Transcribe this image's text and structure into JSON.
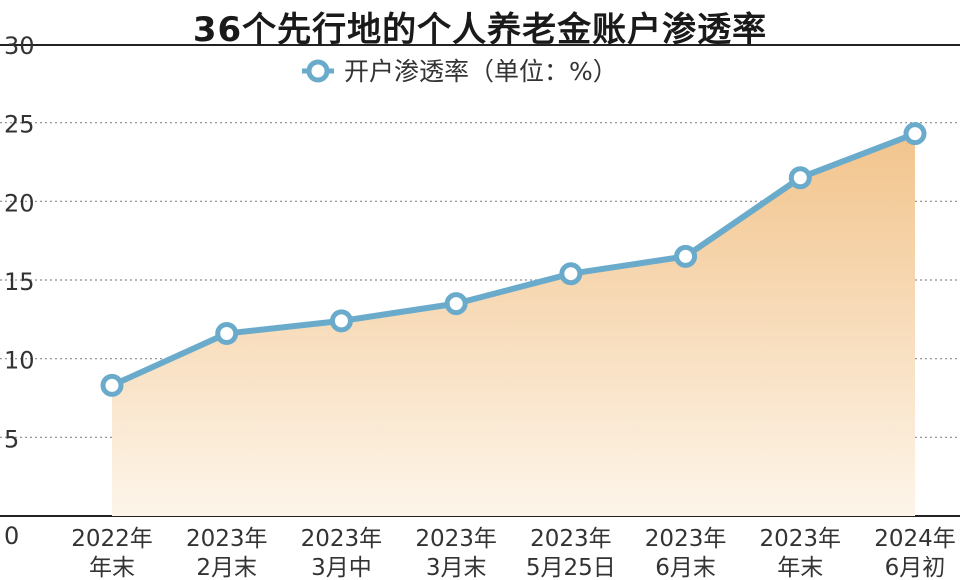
{
  "chart_data": {
    "type": "area",
    "title": "36个先行地的个人养老金账户渗透率",
    "xlabel": "",
    "ylabel": "",
    "ylim": [
      0,
      30
    ],
    "yticks": [
      0,
      5,
      10,
      15,
      20,
      25,
      30
    ],
    "grid": true,
    "legend_position": "top",
    "categories": [
      [
        "2022年",
        "年末"
      ],
      [
        "2023年",
        "2月末"
      ],
      [
        "2023年",
        "3月中"
      ],
      [
        "2023年",
        "3月末"
      ],
      [
        "2023年",
        "5月25日"
      ],
      [
        "2023年",
        "6月末"
      ],
      [
        "2023年",
        "年末"
      ],
      [
        "2024年",
        "6月初"
      ]
    ],
    "series": [
      {
        "name": "开户渗透率（单位：%）",
        "values": [
          8.3,
          11.6,
          12.4,
          13.5,
          15.4,
          16.5,
          21.5,
          24.3
        ]
      }
    ],
    "colors": {
      "line": "#6aabcc",
      "marker_fill": "#ffffff",
      "area_top": "#f2c48c",
      "area_bottom": "#fdf5ea",
      "grid": "#8c8c8c",
      "axis": "#222222"
    }
  }
}
